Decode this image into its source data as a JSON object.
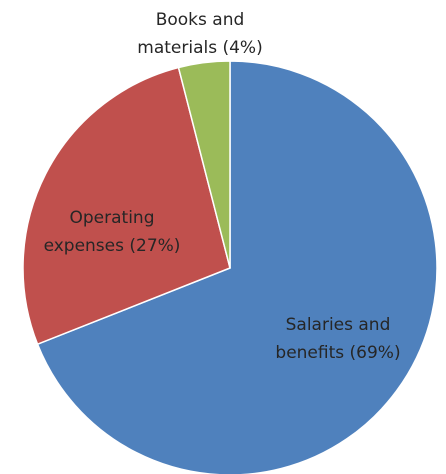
{
  "chart_data": {
    "type": "pie",
    "labels": [
      [
        "Salaries and",
        "benefits (69%)"
      ],
      [
        "Operating",
        "expenses (27%)"
      ],
      [
        "Books and",
        "materials (4%)"
      ]
    ],
    "values": [
      69,
      27,
      4
    ],
    "colors": [
      "#4f81bd",
      "#c0504d",
      "#9bbb59"
    ]
  }
}
